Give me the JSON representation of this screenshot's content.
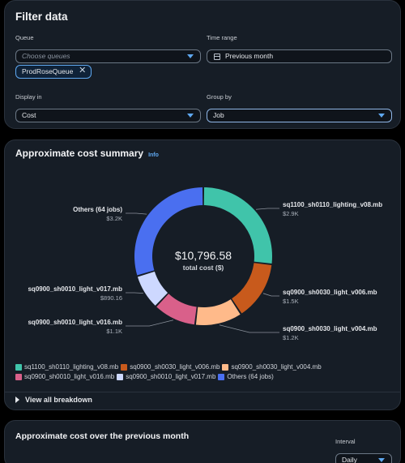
{
  "filter": {
    "title": "Filter data",
    "queue_label": "Queue",
    "queue_placeholder": "Choose queues",
    "queue_token": "ProdRoseQueue",
    "time_label": "Time range",
    "time_value": "Previous month",
    "display_label": "Display in",
    "display_value": "Cost",
    "group_label": "Group by",
    "group_value": "Job"
  },
  "cost_summary": {
    "title": "Approximate cost summary",
    "info_label": "Info",
    "total_value": "$10,796.58",
    "total_label": "total cost ($)",
    "view_breakdown": "View all breakdown"
  },
  "month": {
    "title": "Approximate cost over the previous month",
    "interval_label": "Interval",
    "interval_value": "Daily"
  },
  "chart_data": {
    "type": "pie",
    "title": "",
    "total": 10796.58,
    "legend_position": "bottom",
    "slices": [
      {
        "label": "sq1100_sh0110_lighting_v08.mb",
        "value_label": "$2.9K",
        "value": 2900,
        "color": "#40c4aa"
      },
      {
        "label": "sq0900_sh0030_light_v006.mb",
        "value_label": "$1.5K",
        "value": 1500,
        "color": "#c85a1c"
      },
      {
        "label": "sq0900_sh0030_light_v004.mb",
        "value_label": "$1.2K",
        "value": 1200,
        "color": "#ffba8a"
      },
      {
        "label": "sq0900_sh0010_light_v016.mb",
        "value_label": "$1.1K",
        "value": 1100,
        "color": "#d9608a"
      },
      {
        "label": "sq0900_sh0010_light_v017.mb",
        "value_label": "$890.16",
        "value": 890.16,
        "color": "#cdd8ff"
      },
      {
        "label": "Others (64 jobs)",
        "value_label": "$3.2K",
        "value": 3200,
        "color": "#4a6ff0"
      }
    ]
  }
}
